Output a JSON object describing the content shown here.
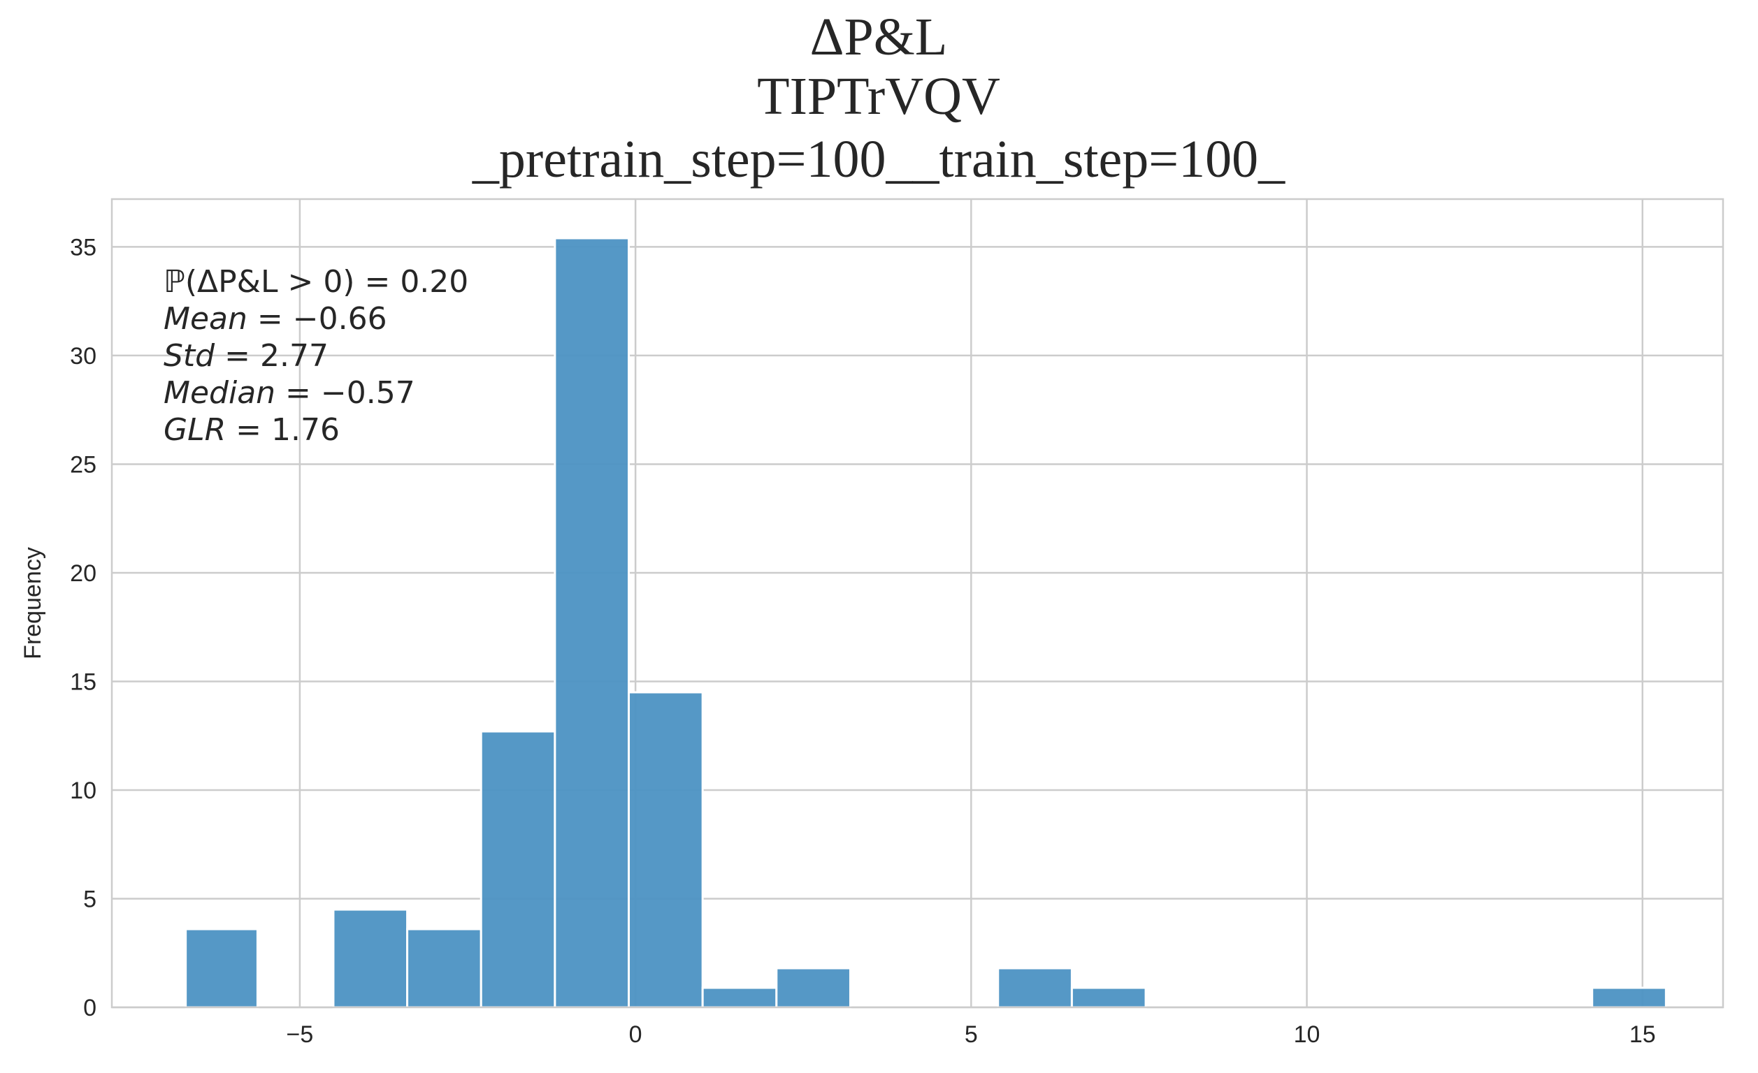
{
  "chart_data": {
    "type": "bar",
    "subtype": "histogram",
    "title_lines": [
      "ΔP&L",
      "TIPTrVQV",
      "_pretrain_step=100__train_step=100_"
    ],
    "xlabel": "",
    "ylabel": "Frequency",
    "xlim": [
      -7.8,
      16.2
    ],
    "ylim": [
      0,
      37.2
    ],
    "xticks": [
      -5,
      0,
      5,
      10,
      15
    ],
    "xtick_labels": [
      "−5",
      "0",
      "5",
      "10",
      "15"
    ],
    "yticks": [
      0,
      5,
      10,
      15,
      20,
      25,
      30,
      35
    ],
    "yticks_labels": [
      "0",
      "5",
      "10",
      "15",
      "20",
      "25",
      "30",
      "35"
    ],
    "grid": true,
    "bar_color": "#4C92C3",
    "bins": [
      {
        "x0": -6.7,
        "x1": -5.63,
        "value": 3.6
      },
      {
        "x0": -4.5,
        "x1": -3.4,
        "value": 4.5
      },
      {
        "x0": -3.4,
        "x1": -2.3,
        "value": 3.6
      },
      {
        "x0": -2.3,
        "x1": -1.2,
        "value": 12.7
      },
      {
        "x0": -1.2,
        "x1": -0.1,
        "value": 35.4
      },
      {
        "x0": -0.1,
        "x1": 1.0,
        "value": 14.5
      },
      {
        "x0": 1.0,
        "x1": 2.1,
        "value": 0.9
      },
      {
        "x0": 2.1,
        "x1": 3.2,
        "value": 1.8
      },
      {
        "x0": 5.4,
        "x1": 6.5,
        "value": 1.8
      },
      {
        "x0": 6.5,
        "x1": 7.6,
        "value": 0.9
      },
      {
        "x0": 14.25,
        "x1": 15.35,
        "value": 0.9
      }
    ],
    "annotation": {
      "lines": [
        {
          "name": "",
          "value": "ℙ(ΔP&L > 0) = 0.20"
        },
        {
          "name": "Mean",
          "value": " = −0.66"
        },
        {
          "name": "Std",
          "value": " = 2.77"
        },
        {
          "name": "Median",
          "value": " = −0.57"
        },
        {
          "name": " GLR",
          "value": " = 1.76"
        }
      ],
      "placement": "top-left"
    }
  }
}
